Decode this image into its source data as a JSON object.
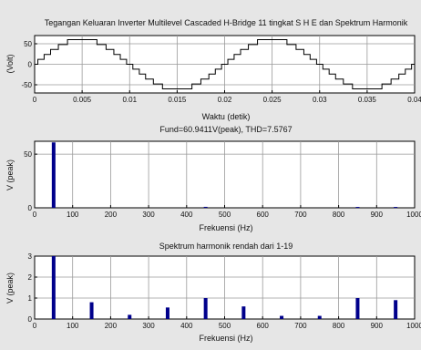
{
  "chart_data": [
    {
      "type": "line",
      "title": "Tegangan Keluaran Inverter Multilevel Cascaded H-Bridge 11 tingkat S H E dan Spektrum Harmonik",
      "xlabel": "Waktu (detik)",
      "ylabel": "(Volt)",
      "xlim": [
        0,
        0.04
      ],
      "ylim": [
        -70,
        70
      ],
      "xticks": [
        "0",
        "0.005",
        "0.01",
        "0.015",
        "0.02",
        "0.025",
        "0.03",
        "0.035",
        "0.04"
      ],
      "yticks": [
        "-50",
        "0",
        "50"
      ],
      "grid": true,
      "levels": 11,
      "step_voltage": 12,
      "frequency_hz": 50,
      "switching_angles_deg": [
        6,
        18,
        30,
        45,
        62
      ],
      "color": "#000000"
    },
    {
      "type": "bar",
      "title": "Fund=60.9411V(peak), THD=7.5767",
      "xlabel": "Frekuensi (Hz)",
      "ylabel": "V (peak)",
      "xlim": [
        0,
        1000
      ],
      "ylim": [
        0,
        62
      ],
      "xticks": [
        "0",
        "100",
        "200",
        "300",
        "400",
        "500",
        "600",
        "700",
        "800",
        "900",
        "1000"
      ],
      "yticks": [
        "0",
        "50"
      ],
      "grid": true,
      "x": [
        50,
        450,
        850,
        950
      ],
      "values": [
        60.94,
        0.9,
        0.8,
        0.8
      ],
      "color": "#00008b"
    },
    {
      "type": "bar",
      "title": "Spektrum harmonik rendah dari 1-19",
      "xlabel": "Frekuensi (Hz)",
      "ylabel": "V (peak)",
      "xlim": [
        0,
        1000
      ],
      "ylim": [
        0,
        3
      ],
      "xticks": [
        "0",
        "100",
        "200",
        "300",
        "400",
        "500",
        "600",
        "700",
        "800",
        "900",
        "1000"
      ],
      "yticks": [
        "0",
        "1",
        "2",
        "3"
      ],
      "grid": true,
      "x": [
        50,
        150,
        250,
        350,
        450,
        550,
        650,
        750,
        850,
        950
      ],
      "values": [
        3,
        0.8,
        0.2,
        0.55,
        1.0,
        0.6,
        0.15,
        0.15,
        1.0,
        0.9
      ],
      "color": "#00008b"
    }
  ]
}
